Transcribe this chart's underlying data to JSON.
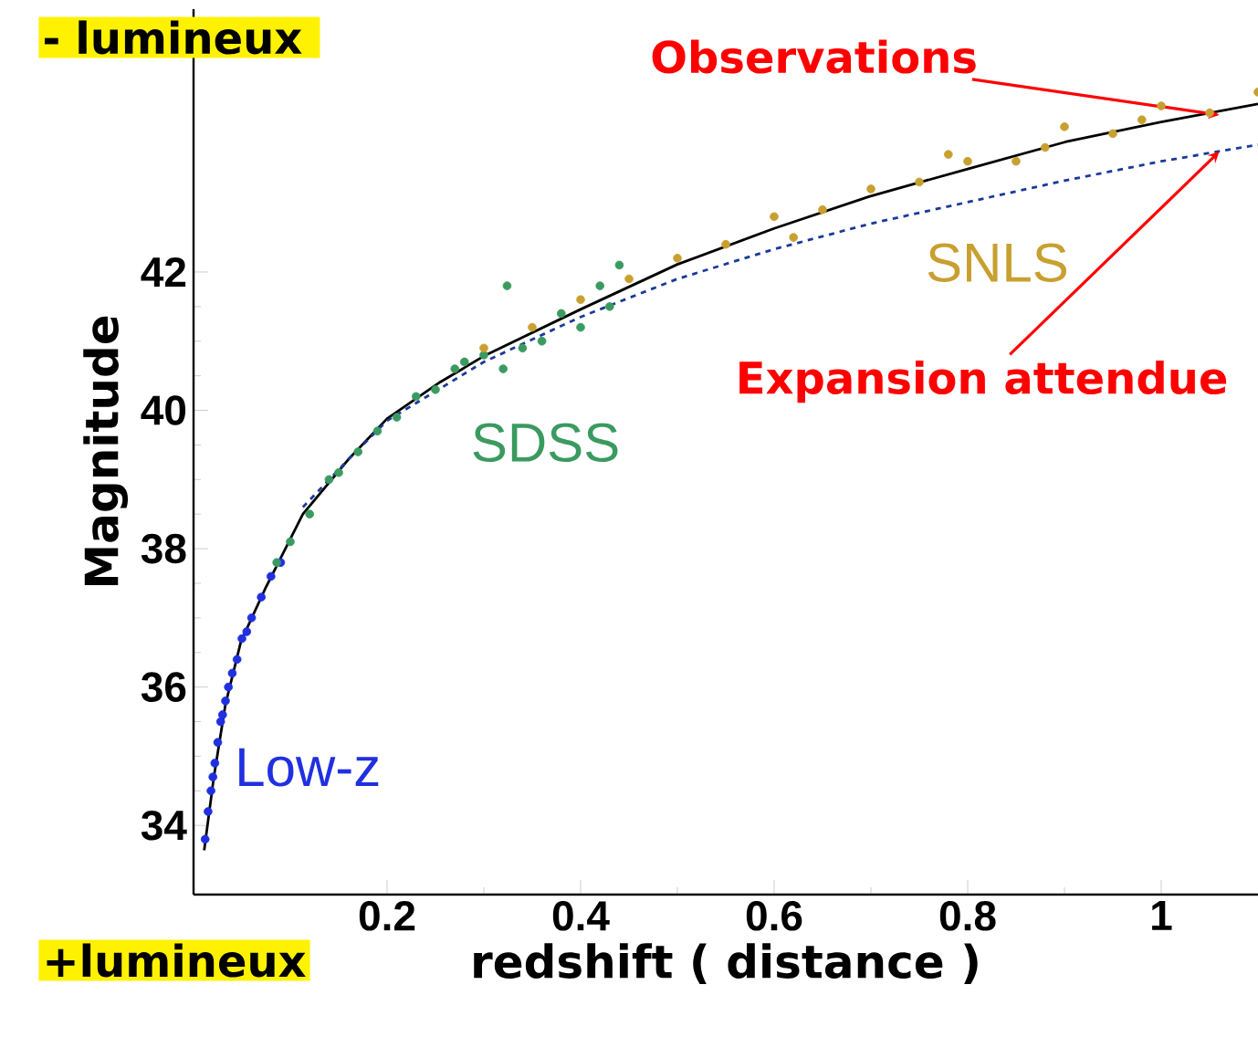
{
  "chart_data": {
    "type": "scatter",
    "xlabel": "redshift  ( distance )",
    "ylabel": "Magnitude",
    "xlim": [
      0,
      1.1
    ],
    "ylim": [
      33,
      45.8
    ],
    "xticks": [
      0.2,
      0.4,
      0.6,
      0.8,
      1
    ],
    "yticks": [
      34,
      36,
      38,
      40,
      42
    ],
    "marker": "circle",
    "series": [
      {
        "name": "Low-z",
        "color": "#2030e0",
        "x": [
          0.012,
          0.015,
          0.018,
          0.02,
          0.022,
          0.025,
          0.028,
          0.03,
          0.033,
          0.036,
          0.04,
          0.045,
          0.05,
          0.055,
          0.06,
          0.07,
          0.08,
          0.09
        ],
        "values": [
          33.8,
          34.2,
          34.5,
          34.7,
          34.9,
          35.2,
          35.5,
          35.6,
          35.8,
          36.0,
          36.2,
          36.4,
          36.7,
          36.8,
          37.0,
          37.3,
          37.6,
          37.8
        ]
      },
      {
        "name": "SDSS",
        "color": "#3a9a60",
        "x": [
          0.086,
          0.1,
          0.12,
          0.14,
          0.15,
          0.17,
          0.19,
          0.21,
          0.23,
          0.25,
          0.27,
          0.28,
          0.3,
          0.32,
          0.324,
          0.34,
          0.36,
          0.38,
          0.4,
          0.42,
          0.43,
          0.44
        ],
        "values": [
          37.8,
          38.1,
          38.5,
          39.0,
          39.1,
          39.4,
          39.7,
          39.9,
          40.2,
          40.3,
          40.6,
          40.7,
          40.8,
          40.6,
          41.8,
          40.9,
          41.0,
          41.4,
          41.2,
          41.8,
          41.5,
          42.1
        ]
      },
      {
        "name": "SNLS",
        "color": "#c8a030",
        "x": [
          0.3,
          0.35,
          0.4,
          0.45,
          0.5,
          0.55,
          0.6,
          0.62,
          0.65,
          0.7,
          0.75,
          0.78,
          0.8,
          0.85,
          0.88,
          0.9,
          0.95,
          0.98,
          1.0,
          1.05,
          1.1
        ],
        "values": [
          40.9,
          41.2,
          41.6,
          41.9,
          42.2,
          42.4,
          42.8,
          42.5,
          42.9,
          43.2,
          43.3,
          43.7,
          43.6,
          43.6,
          43.8,
          44.1,
          44.0,
          44.2,
          44.4,
          44.3,
          44.6
        ]
      },
      {
        "color": "#000000",
        "type": "line",
        "marker": "none",
        "line_style": "solid",
        "x": [
          0.011,
          0.021,
          0.033,
          0.049,
          0.075,
          0.113,
          0.16,
          0.2,
          0.255,
          0.302,
          0.4,
          0.5,
          0.6,
          0.698,
          0.8,
          0.901,
          1.0,
          1.1
        ],
        "values": [
          33.64,
          34.7,
          35.75,
          36.66,
          37.45,
          38.5,
          39.29,
          39.88,
          40.41,
          40.8,
          41.46,
          42.11,
          42.63,
          43.09,
          43.49,
          43.88,
          44.17,
          44.43
        ]
      },
      {
        "color": "#1a3a9a",
        "type": "line",
        "marker": "none",
        "line_style": "dashed",
        "x": [
          0.113,
          0.16,
          0.2,
          0.3,
          0.4,
          0.5,
          0.6,
          0.7,
          0.8,
          0.9,
          1.0,
          1.1
        ],
        "values": [
          38.6,
          39.29,
          39.85,
          40.7,
          41.35,
          41.9,
          42.33,
          42.7,
          43.01,
          43.32,
          43.6,
          43.84
        ]
      }
    ],
    "annotations": [
      "- lumineux",
      "+lumineux",
      {
        "text": "Observations",
        "x": 1.06,
        "y": 44.27
      },
      {
        "text": "Expansion attendue",
        "x": 1.06,
        "y": 43.74
      }
    ]
  }
}
